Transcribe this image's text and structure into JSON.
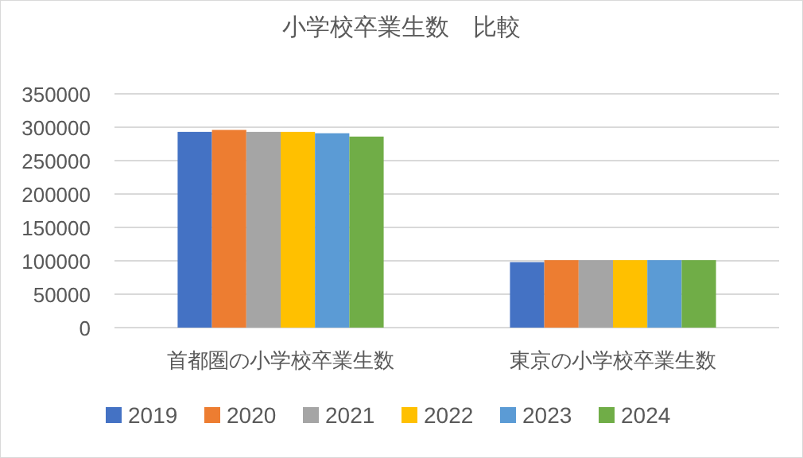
{
  "chart_data": {
    "type": "bar",
    "title": "小学校卒業生数　比較",
    "categories": [
      "首都圏の小学校卒業生数",
      "東京の小学校卒業生数"
    ],
    "series": [
      {
        "name": "2019",
        "color": "#4472c4",
        "values": [
          293000,
          98000
        ]
      },
      {
        "name": "2020",
        "color": "#ed7d31",
        "values": [
          296000,
          101000
        ]
      },
      {
        "name": "2021",
        "color": "#a5a5a5",
        "values": [
          293000,
          101000
        ]
      },
      {
        "name": "2022",
        "color": "#ffc000",
        "values": [
          293000,
          101000
        ]
      },
      {
        "name": "2023",
        "color": "#5b9bd5",
        "values": [
          291000,
          101000
        ]
      },
      {
        "name": "2024",
        "color": "#70ad47",
        "values": [
          286000,
          101000
        ]
      }
    ],
    "ylim": [
      0,
      350000
    ],
    "yticks": [
      0,
      50000,
      100000,
      150000,
      200000,
      250000,
      300000,
      350000
    ],
    "grid": "y",
    "legend": "bottom"
  }
}
